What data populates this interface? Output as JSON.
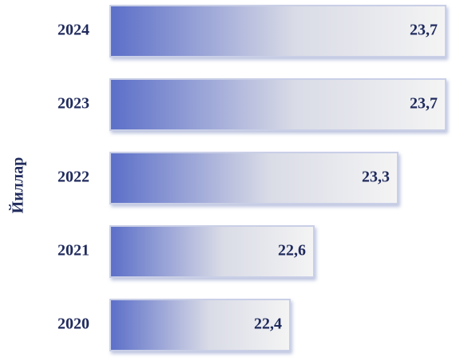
{
  "chart_data": {
    "type": "barh",
    "y_label": "Йиллар",
    "categories": [
      "2020",
      "2021",
      "2022",
      "2023",
      "2024"
    ],
    "values": [
      22.4,
      22.6,
      23.3,
      23.7,
      23.7
    ],
    "value_labels": [
      "22,4",
      "22,6",
      "23,3",
      "23,7",
      "23,7"
    ],
    "color": "#5b6ec8",
    "xlim": [
      20.9,
      23.7
    ]
  }
}
